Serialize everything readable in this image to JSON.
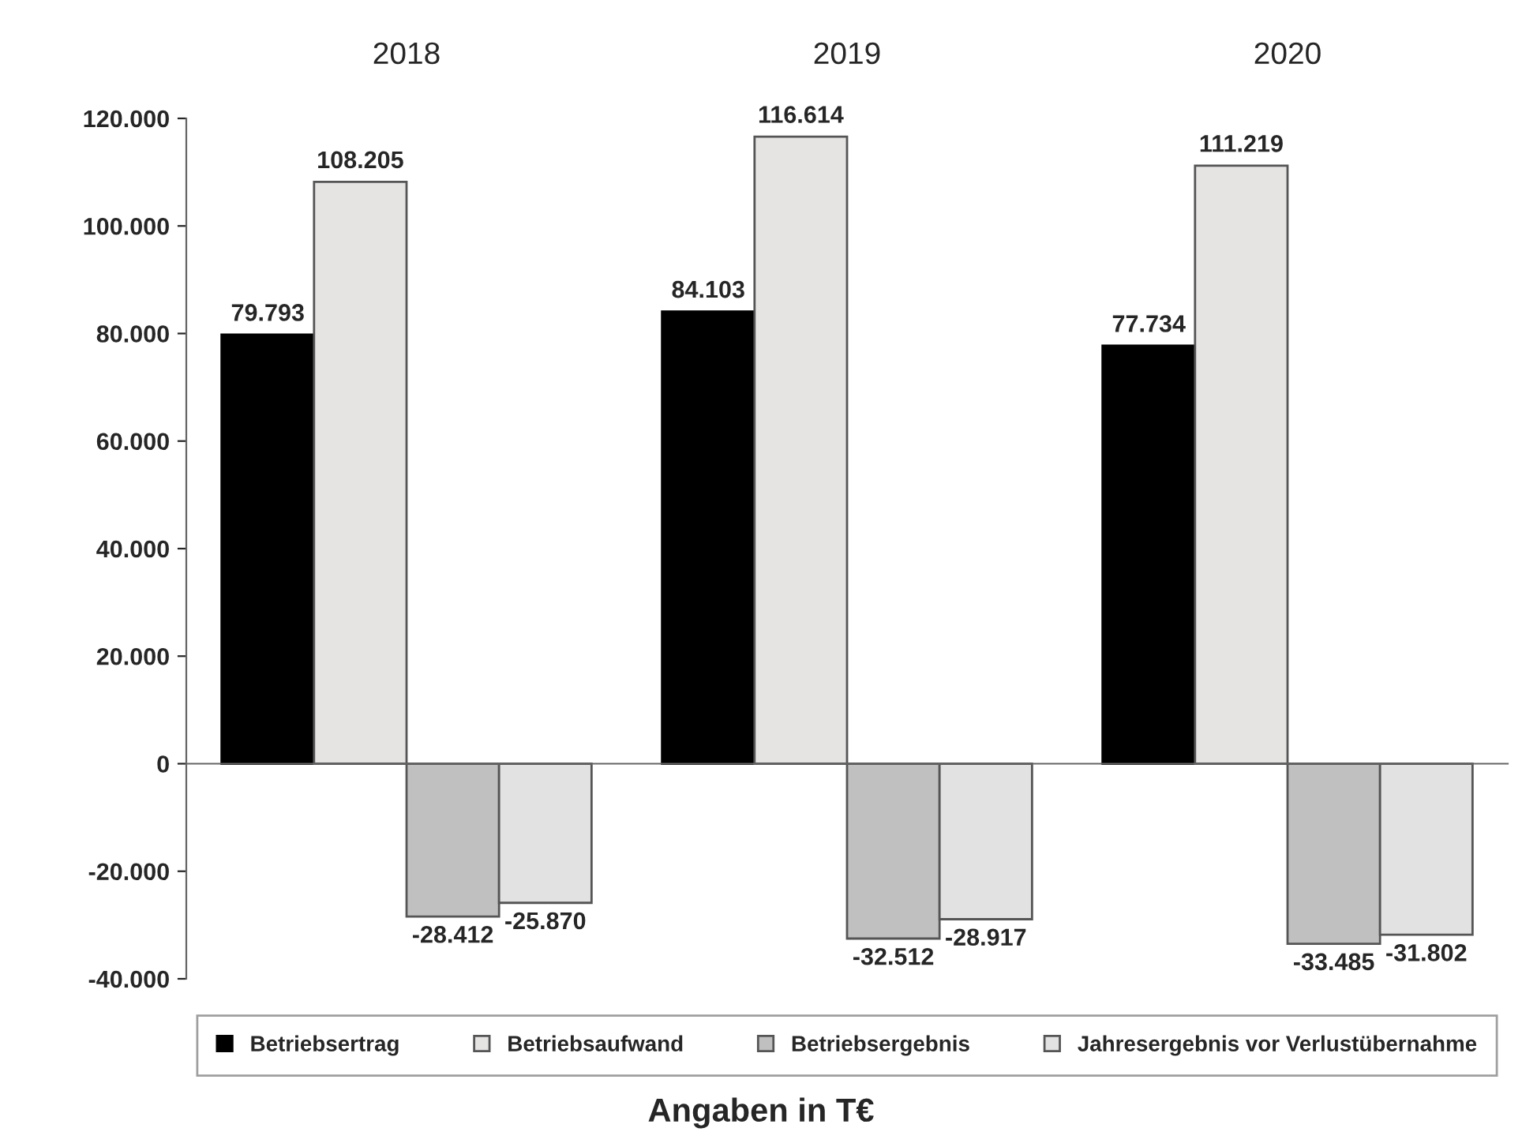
{
  "chart_data": {
    "type": "bar",
    "xlabel": "Angaben in T€",
    "categories": [
      "2018",
      "2019",
      "2020"
    ],
    "series": [
      {
        "name": "Betriebsertrag",
        "color": "#000000",
        "values": [
          79793,
          84103,
          77734
        ],
        "value_labels": [
          "79.793",
          "84.103",
          "77.734"
        ]
      },
      {
        "name": "Betriebsaufwand",
        "color": "#e6e3e3",
        "values": [
          108205,
          116614,
          111219
        ],
        "value_labels": [
          "108.205",
          "116.614",
          "111.219"
        ]
      },
      {
        "name": "Betriebsergebnis",
        "color": "#c0c0c0",
        "values": [
          -28412,
          -32512,
          -33485
        ],
        "value_labels": [
          "-28.412",
          "-32.512",
          "-33.485"
        ]
      },
      {
        "name": "Jahresergebnis vor Verlustübernahme",
        "color": "#e2e2e2",
        "values": [
          -25870,
          -28917,
          -31802
        ],
        "value_labels": [
          "-25.870",
          "-28.917",
          "-31.802"
        ]
      }
    ],
    "ylim": [
      -40000,
      120000
    ],
    "yticks": [
      {
        "value": -40000,
        "label": "-40.000"
      },
      {
        "value": -20000,
        "label": "-20.000"
      },
      0,
      {
        "value": 20000,
        "label": "20.000"
      },
      {
        "value": 40000,
        "label": "40.000"
      },
      {
        "value": 60000,
        "label": "60.000"
      },
      {
        "value": 80000,
        "label": "80.000"
      },
      {
        "value": 100000,
        "label": "100.000"
      },
      {
        "value": 120000,
        "label": "120.000"
      }
    ],
    "legend": "bottom"
  }
}
